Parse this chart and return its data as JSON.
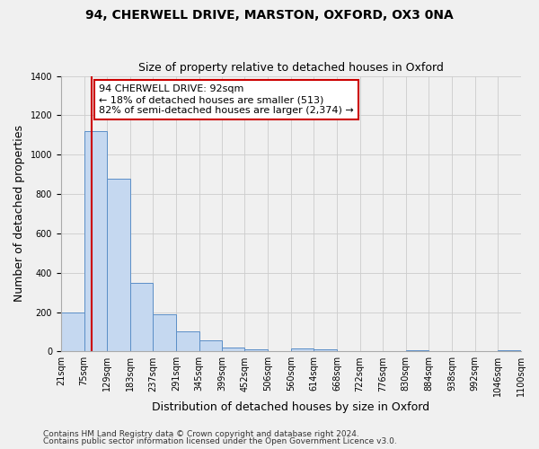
{
  "title": "94, CHERWELL DRIVE, MARSTON, OXFORD, OX3 0NA",
  "subtitle": "Size of property relative to detached houses in Oxford",
  "xlabel": "Distribution of detached houses by size in Oxford",
  "ylabel": "Number of detached properties",
  "bin_edges": [
    21,
    75,
    129,
    183,
    237,
    291,
    345,
    399,
    452,
    506,
    560,
    614,
    668,
    722,
    776,
    830,
    884,
    938,
    992,
    1046,
    1100
  ],
  "bin_labels": [
    "21sqm",
    "75sqm",
    "129sqm",
    "183sqm",
    "237sqm",
    "291sqm",
    "345sqm",
    "399sqm",
    "452sqm",
    "506sqm",
    "560sqm",
    "614sqm",
    "668sqm",
    "722sqm",
    "776sqm",
    "830sqm",
    "884sqm",
    "938sqm",
    "992sqm",
    "1046sqm",
    "1100sqm"
  ],
  "counts": [
    200,
    1120,
    880,
    350,
    190,
    100,
    55,
    20,
    10,
    0,
    15,
    10,
    0,
    0,
    0,
    5,
    0,
    0,
    0,
    5
  ],
  "bar_color": "#c5d8f0",
  "bar_edge_color": "#5b8ec7",
  "property_line_x": 92,
  "vline_color": "#cc0000",
  "annotation_text": "94 CHERWELL DRIVE: 92sqm\n← 18% of detached houses are smaller (513)\n82% of semi-detached houses are larger (2,374) →",
  "annotation_box_color": "#ffffff",
  "annotation_box_edge_color": "#cc0000",
  "ylim": [
    0,
    1400
  ],
  "yticks": [
    0,
    200,
    400,
    600,
    800,
    1000,
    1200,
    1400
  ],
  "footer1": "Contains HM Land Registry data © Crown copyright and database right 2024.",
  "footer2": "Contains public sector information licensed under the Open Government Licence v3.0.",
  "bg_color": "#f0f0f0",
  "grid_color": "#cccccc",
  "title_fontsize": 10,
  "subtitle_fontsize": 9,
  "axis_label_fontsize": 9,
  "tick_fontsize": 7,
  "annotation_fontsize": 8,
  "footer_fontsize": 6.5
}
